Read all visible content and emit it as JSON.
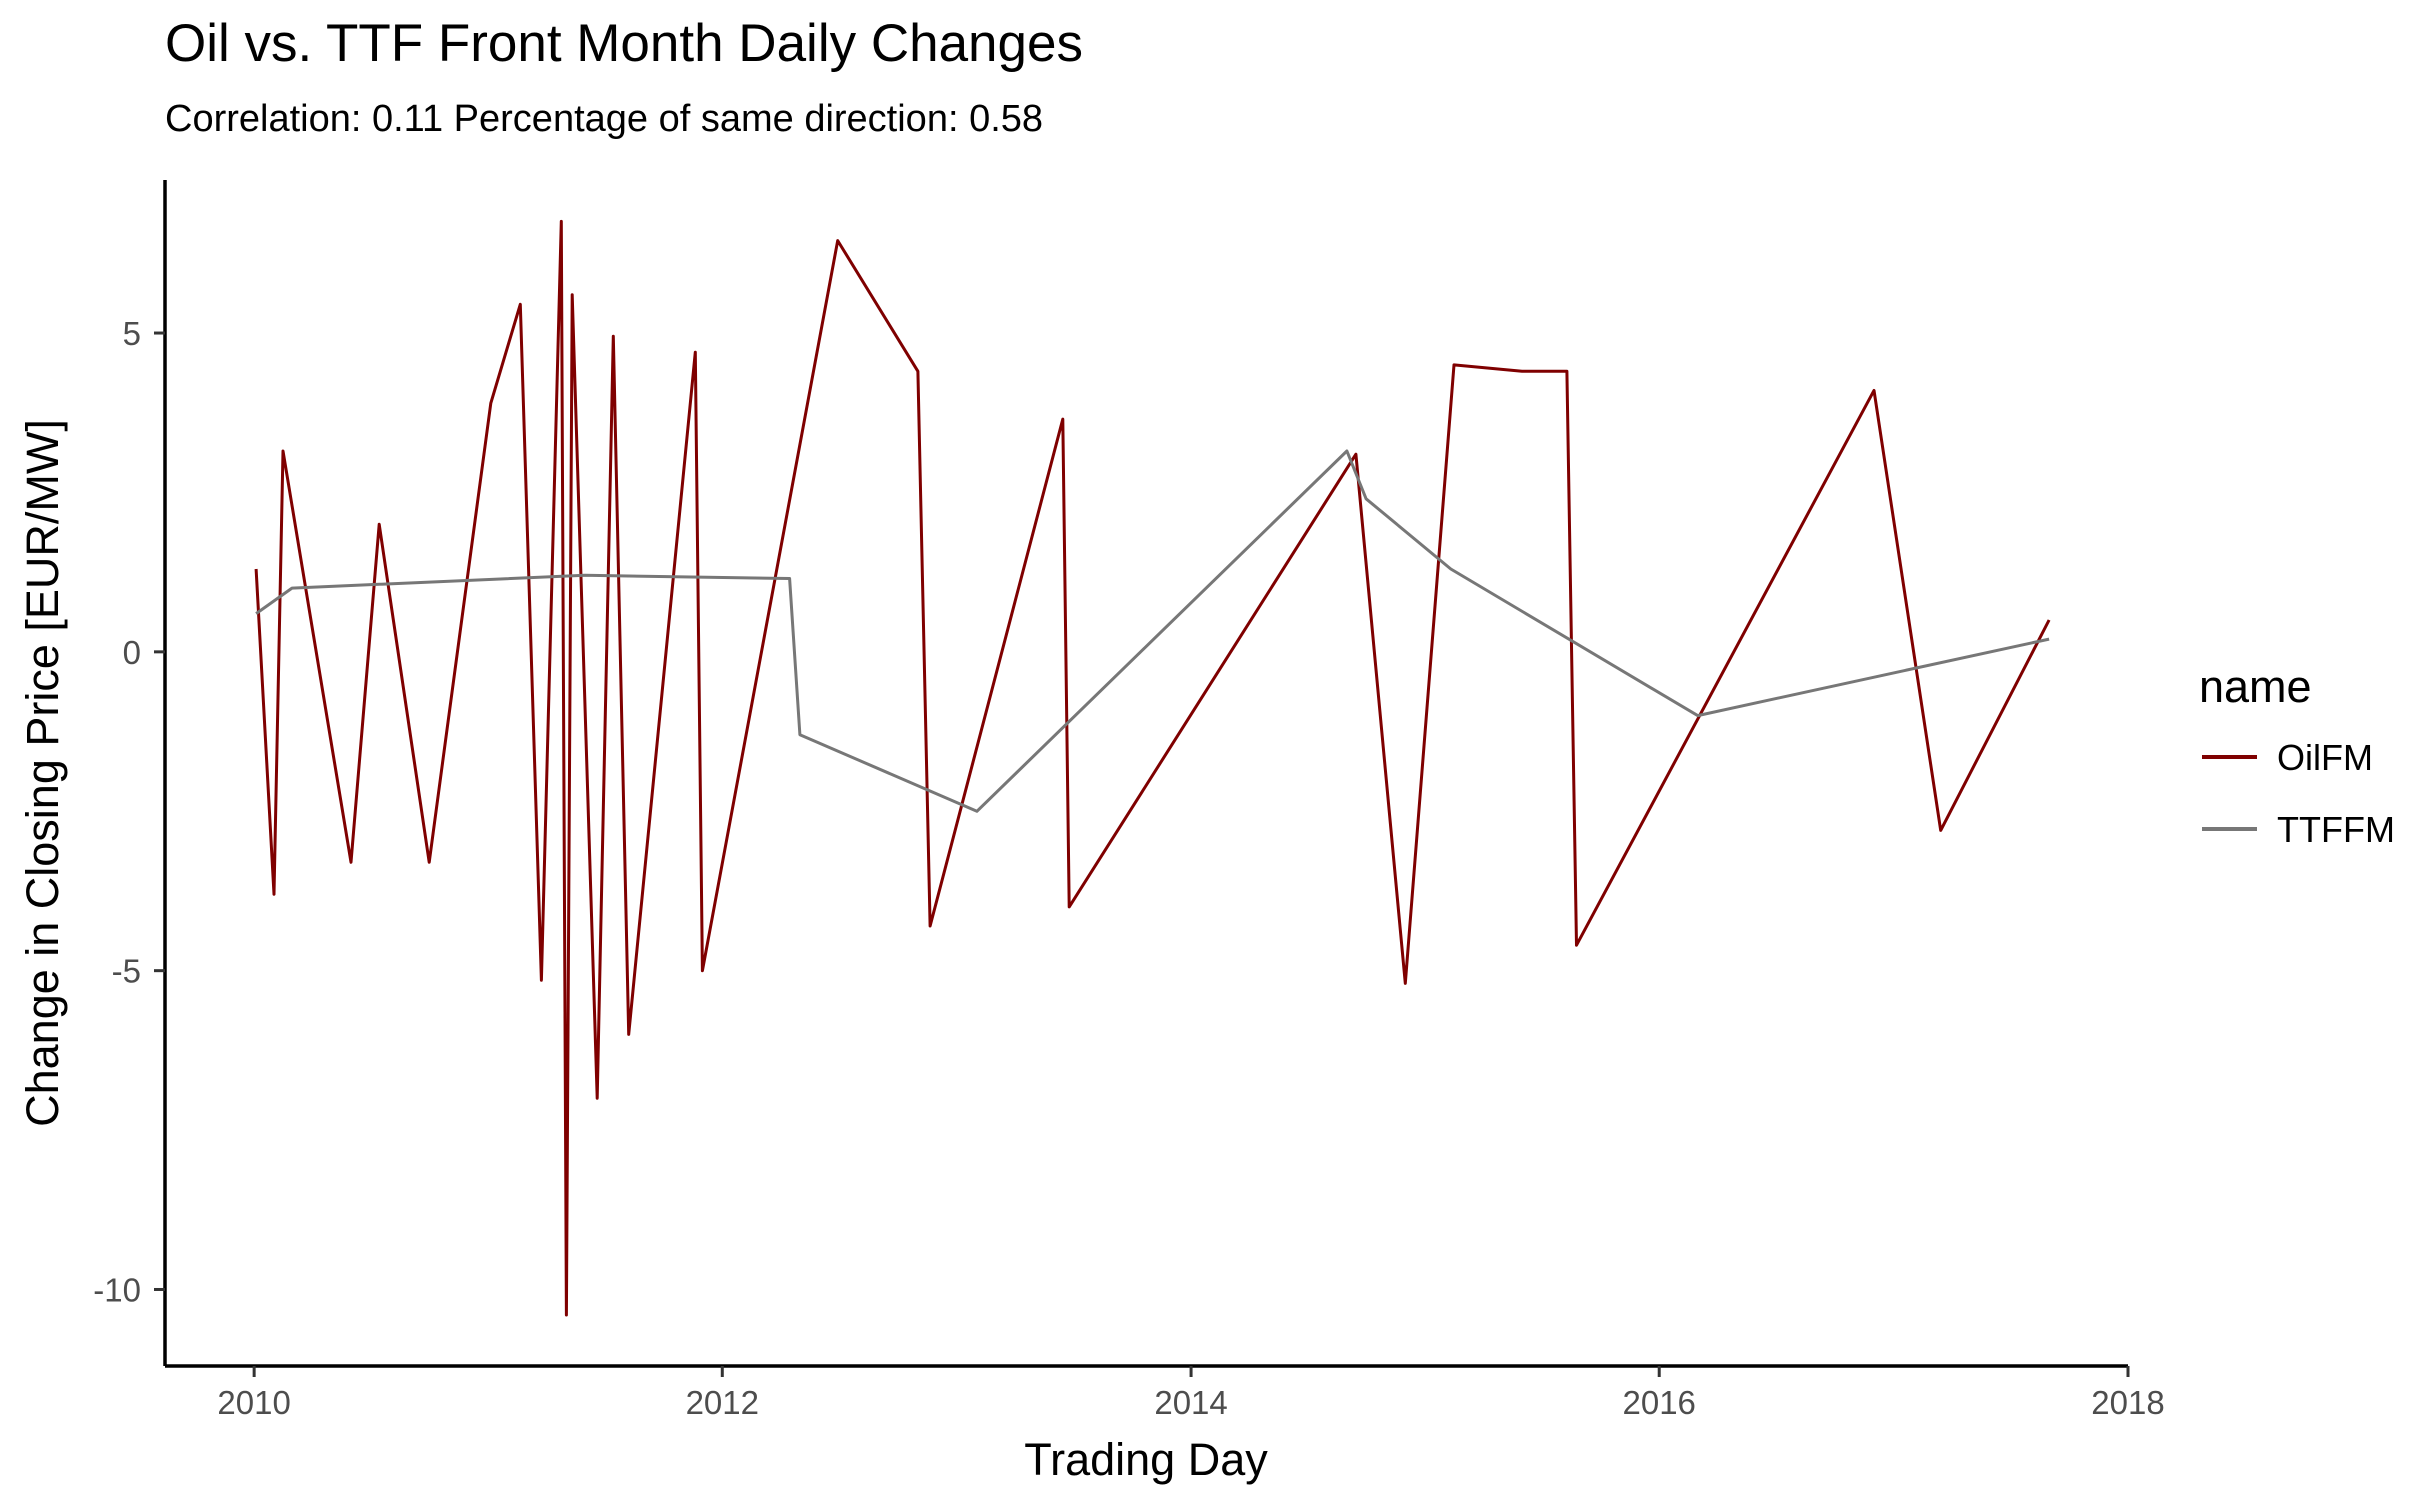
{
  "chart_data": {
    "type": "line",
    "title": "Oil vs. TTF Front Month Daily Changes",
    "subtitle": "Correlation: 0.11 Percentage of same direction: 0.58",
    "xlabel": "Trading Day",
    "ylabel": "Change in Closing Price [EUR/MW]",
    "x_range": [
      "2010-01-04",
      "2017-08-31"
    ],
    "xlim": [
      "2009-08-15",
      "2018-01-01"
    ],
    "ylim": [
      -11.2,
      7.4
    ],
    "x_ticks": [
      "2010",
      "2012",
      "2014",
      "2016",
      "2018"
    ],
    "y_ticks": [
      5,
      0,
      -5,
      -10
    ],
    "y_tick_labels": [
      "5",
      "0",
      "-5",
      "-10"
    ],
    "grid": false,
    "legend": {
      "title": "name",
      "position": "right"
    },
    "series": [
      {
        "name": "OilFM",
        "color": "#7F0000",
        "points": [
          [
            "2010-01-04",
            1.3
          ],
          [
            "2010-02-01",
            -3.8
          ],
          [
            "2010-02-15",
            3.15
          ],
          [
            "2010-06-01",
            -3.3
          ],
          [
            "2010-07-15",
            2.0
          ],
          [
            "2010-10-01",
            -3.3
          ],
          [
            "2011-01-05",
            3.9
          ],
          [
            "2011-02-20",
            5.45
          ],
          [
            "2011-03-25",
            -5.15
          ],
          [
            "2011-04-25",
            6.75
          ],
          [
            "2011-05-03",
            -10.4
          ],
          [
            "2011-05-12",
            5.6
          ],
          [
            "2011-06-20",
            -7.0
          ],
          [
            "2011-07-15",
            4.95
          ],
          [
            "2011-08-08",
            -6.0
          ],
          [
            "2011-11-20",
            4.7
          ],
          [
            "2011-12-01",
            -5.0
          ],
          [
            "2012-06-29",
            6.45
          ],
          [
            "2012-11-01",
            4.4
          ],
          [
            "2012-11-20",
            -4.3
          ],
          [
            "2013-06-15",
            3.65
          ],
          [
            "2013-06-25",
            -4.0
          ],
          [
            "2014-09-15",
            3.1
          ],
          [
            "2014-12-01",
            -5.2
          ],
          [
            "2015-02-15",
            4.5
          ],
          [
            "2015-06-01",
            4.4
          ],
          [
            "2015-08-10",
            4.4
          ],
          [
            "2015-08-25",
            -4.6
          ],
          [
            "2016-12-01",
            4.1
          ],
          [
            "2017-03-15",
            -2.8
          ],
          [
            "2017-08-31",
            0.5
          ]
        ]
      },
      {
        "name": "TTFFM",
        "color": "#777777",
        "points": [
          [
            "2010-01-04",
            0.6
          ],
          [
            "2010-03-01",
            1.0
          ],
          [
            "2011-06-01",
            1.2
          ],
          [
            "2012-04-15",
            1.15
          ],
          [
            "2012-05-01",
            -1.3
          ],
          [
            "2013-02-01",
            -2.5
          ],
          [
            "2014-09-01",
            3.15
          ],
          [
            "2014-10-01",
            2.4
          ],
          [
            "2015-02-10",
            1.3
          ],
          [
            "2016-03-01",
            -1.0
          ],
          [
            "2017-08-31",
            0.2
          ]
        ]
      }
    ]
  }
}
